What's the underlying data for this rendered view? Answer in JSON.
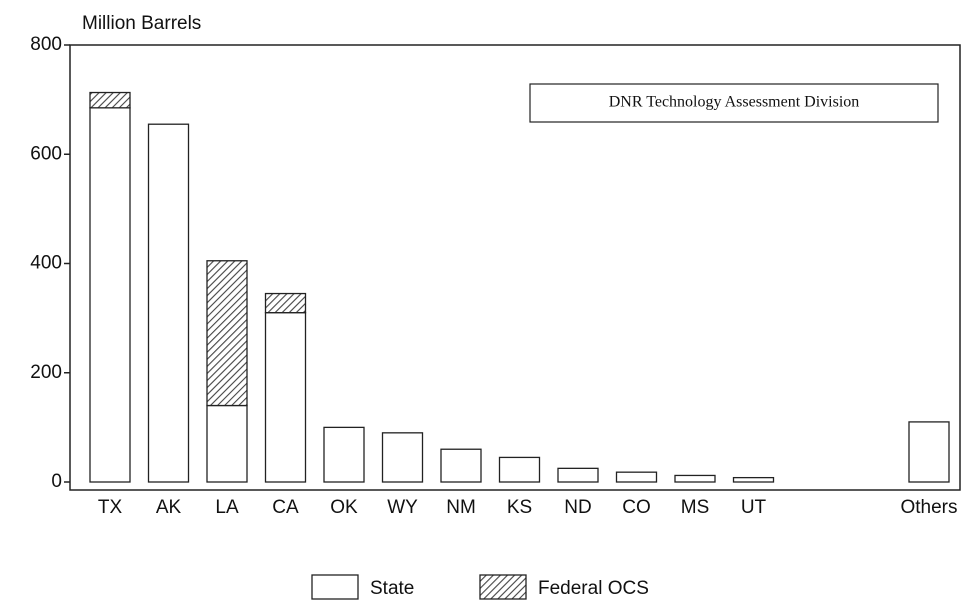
{
  "chart_data": {
    "type": "bar",
    "stacked": true,
    "y_label": "Million Barrels",
    "annotation": "DNR Technology Assessment Division",
    "categories": [
      "TX",
      "AK",
      "LA",
      "CA",
      "OK",
      "WY",
      "NM",
      "KS",
      "ND",
      "CO",
      "MS",
      "UT",
      "Others"
    ],
    "series": [
      {
        "name": "State",
        "color": "#ffffff",
        "values": [
          685,
          655,
          140,
          310,
          100,
          90,
          60,
          45,
          25,
          18,
          12,
          8,
          110
        ]
      },
      {
        "name": "Federal OCS",
        "color": "#444444",
        "hatch": true,
        "values": [
          28,
          0,
          265,
          35,
          0,
          0,
          0,
          0,
          0,
          0,
          0,
          0,
          0
        ]
      }
    ],
    "ylim": [
      0,
      800
    ],
    "yticks": [
      0,
      200,
      400,
      600,
      800
    ],
    "legend": "bottom"
  }
}
